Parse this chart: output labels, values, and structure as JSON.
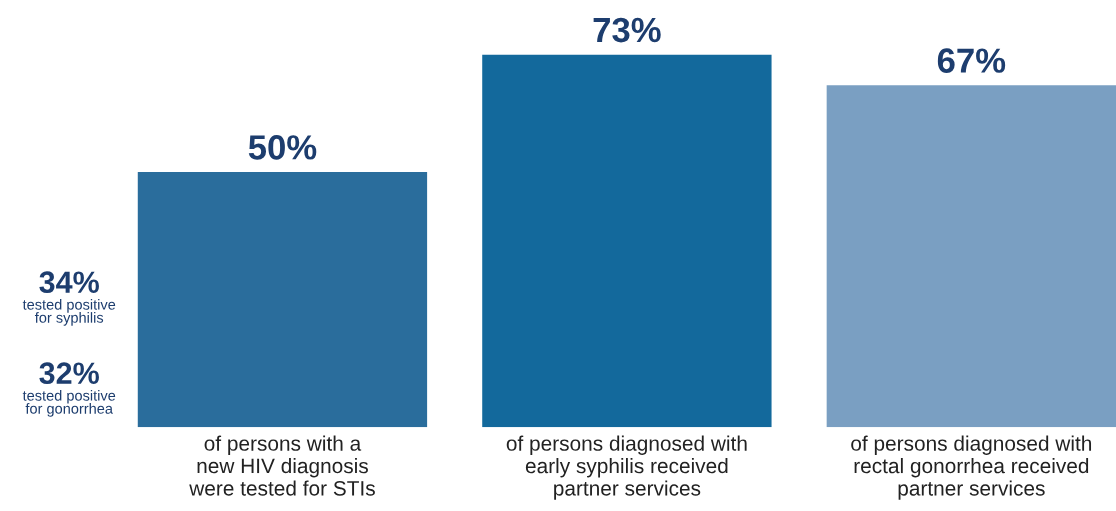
{
  "chart_data": {
    "type": "bar",
    "categories": [
      "of persons with a\nnew HIV diagnosis\nwere tested for STIs",
      "of persons diagnosed with\nearly syphilis received\npartner services",
      "of persons diagnosed with\nrectal gonorrhea received\npartner services"
    ],
    "values": [
      50,
      73,
      67
    ],
    "colors": [
      "#2a6d9c",
      "#13699c",
      "#7a9fc2"
    ],
    "value_labels": [
      "50%",
      "73%",
      "67%"
    ],
    "annotations": [
      "34%\ntested positive\nfor syphilis",
      "32%\ntested positive\nfor gonorrhea"
    ],
    "grid": false,
    "legend": false
  }
}
